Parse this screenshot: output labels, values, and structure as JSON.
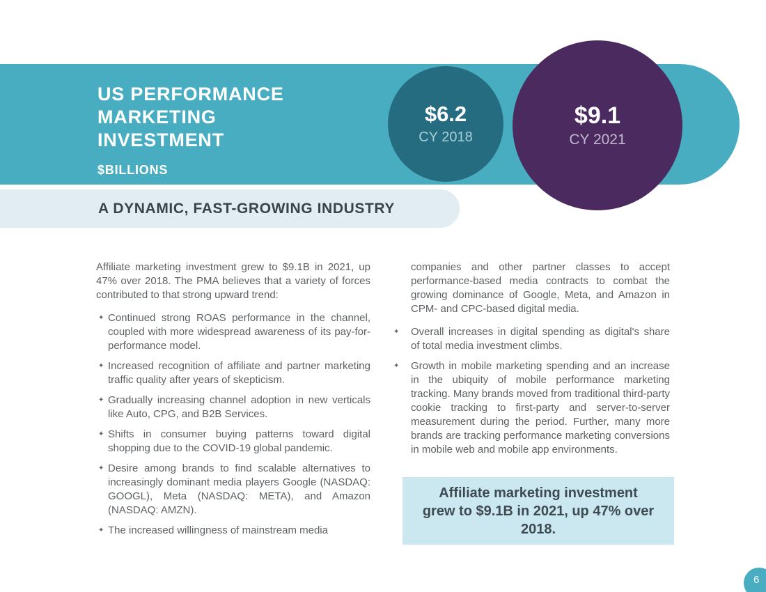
{
  "header": {
    "title_lines": [
      "US PERFORMANCE",
      "MARKETING",
      "INVESTMENT"
    ],
    "subtitle": "$BILLIONS",
    "bubbles": [
      {
        "value": "$6.2",
        "label": "CY 2018"
      },
      {
        "value": "$9.1",
        "label": "CY 2021"
      }
    ]
  },
  "section_banner": {
    "text": "A DYNAMIC, FAST-GROWING INDUSTRY"
  },
  "body": {
    "intro": "Affiliate marketing investment grew to $9.1B in 2021, up 47% over 2018. The PMA believes that a variety of forces contributed to that strong upward trend:",
    "left_bullets": [
      "Continued strong ROAS performance in the channel, coupled with more widespread awareness of its pay-for-performance model.",
      "Increased recognition of affiliate and partner marketing traffic quality after years of skepticism.",
      "Gradually increasing channel adoption in new verticals like Auto, CPG, and B2B Services.",
      "Shifts in consumer buying patterns toward digital shopping due to the COVID-19 global pandemic.",
      "Desire among brands to find scalable alternatives to increasingly dominant media players Google (NASDAQ: GOOGL), Meta (NASDAQ: META), and Amazon (NASDAQ: AMZN).",
      "The increased willingness of mainstream media"
    ],
    "right_continuation": "companies and other partner classes to accept performance-based media contracts to combat the growing dominance of Google, Meta, and Amazon in CPM- and CPC-based digital media.",
    "right_bullets": [
      "Overall increases in digital spending as digital's share of total media investment climbs.",
      "Growth in mobile marketing spending and an increase in the ubiquity of mobile performance marketing tracking. Many brands moved from traditional third-party cookie tracking to first-party and server-to-server measurement during the period. Further, many more brands are tracking performance marketing conversions in mobile web and mobile app environments."
    ],
    "callout": "Affiliate marketing investment grew to $9.1B in 2021, up 47% over 2018."
  },
  "footer": {
    "page_number": "6"
  },
  "icons": {
    "bullet_glyph": "✦"
  },
  "colors": {
    "band_teal": "#48ADC0",
    "bubble_dark_teal": "#266C81",
    "bubble_purple": "#4B2B5F",
    "banner_light_blue": "#E2ECF3",
    "callout_light_cyan": "#CBE7EF",
    "heading_charcoal": "#39434B",
    "body_gray": "#5D6164"
  }
}
